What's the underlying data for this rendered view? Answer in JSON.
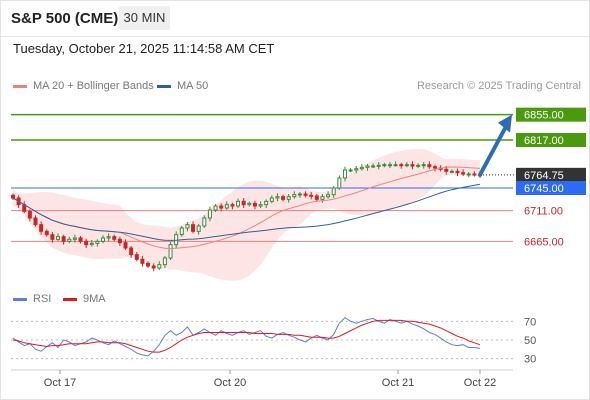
{
  "header": {
    "instrument": "S&P 500 (CME)",
    "timeframe": "30 MIN"
  },
  "datetime": "Tuesday, October 21, 2025 11:14:58 AM CET",
  "legend": [
    {
      "label": "MA 20 + Bollinger Bands",
      "color": "#f08080"
    },
    {
      "label": "MA 50",
      "color": "#2f5f98"
    }
  ],
  "credit": "Research © 2025 Trading Central",
  "rsi_legend": [
    {
      "label": "RSI",
      "color": "#5b7fd6"
    },
    {
      "label": "9MA",
      "color": "#e31a1c"
    }
  ],
  "colors": {
    "resistance": "#4a9a0e",
    "pivot": "#2d6cf0",
    "support": "#e88080",
    "current": "#333333",
    "up": "#3a8a3a",
    "down": "#c62828",
    "arrow": "#2d6cb5"
  },
  "chart_data": [
    {
      "type": "candlestick",
      "title": "S&P 500 (CME) 30 MIN",
      "x_ticks": [
        "Oct 17",
        "Oct 20",
        "Oct 21",
        "Oct 22"
      ],
      "y_range": [
        6610,
        6880
      ],
      "levels": [
        {
          "label": "6855.00",
          "value": 6855,
          "kind": "resistance"
        },
        {
          "label": "6817.00",
          "value": 6817,
          "kind": "resistance"
        },
        {
          "label": "6764.75",
          "value": 6764.75,
          "kind": "current"
        },
        {
          "label": "6745.00",
          "value": 6745,
          "kind": "pivot"
        },
        {
          "label": "6711.00",
          "value": 6711,
          "kind": "support"
        },
        {
          "label": "6665.00",
          "value": 6665,
          "kind": "support"
        }
      ],
      "close_series": [
        6730,
        6720,
        6710,
        6700,
        6690,
        6680,
        6675,
        6668,
        6672,
        6665,
        6668,
        6670,
        6665,
        6660,
        6662,
        6665,
        6670,
        6672,
        6668,
        6663,
        6655,
        6645,
        6638,
        6632,
        6628,
        6625,
        6630,
        6640,
        6660,
        6675,
        6685,
        6690,
        6680,
        6688,
        6700,
        6712,
        6718,
        6715,
        6720,
        6718,
        6725,
        6720,
        6722,
        6718,
        6720,
        6725,
        6730,
        6732,
        6728,
        6732,
        6735,
        6736,
        6734,
        6733,
        6728,
        6732,
        6735,
        6745,
        6760,
        6772,
        6772,
        6774,
        6776,
        6778,
        6778,
        6779,
        6780,
        6780,
        6780,
        6779,
        6780,
        6778,
        6779,
        6780,
        6777,
        6775,
        6773,
        6770,
        6770,
        6768,
        6766,
        6766,
        6765,
        6765
      ],
      "projection": {
        "from": 6764.75,
        "to": 6855
      }
    },
    {
      "type": "line",
      "name": "RSI panel",
      "y_ticks": [
        70,
        50,
        30
      ],
      "y_range": [
        20,
        80
      ],
      "series": [
        {
          "name": "RSI",
          "values": [
            52,
            48,
            44,
            46,
            40,
            38,
            43,
            47,
            42,
            50,
            48,
            44,
            46,
            48,
            52,
            50,
            47,
            45,
            49,
            46,
            43,
            40,
            36,
            34,
            33,
            38,
            45,
            55,
            60,
            55,
            58,
            64,
            55,
            58,
            62,
            58,
            55,
            60,
            57,
            55,
            58,
            60,
            56,
            58,
            60,
            54,
            52,
            56,
            58,
            55,
            53,
            50,
            48,
            52,
            55,
            52,
            50,
            56,
            68,
            74,
            70,
            68,
            70,
            72,
            73,
            70,
            68,
            72,
            70,
            68,
            70,
            67,
            65,
            62,
            58,
            56,
            52,
            48,
            45,
            44,
            45,
            42,
            42,
            41
          ]
        },
        {
          "name": "9MA",
          "values": [
            50,
            49,
            47,
            46,
            45,
            44,
            43,
            44,
            44,
            45,
            46,
            46,
            46,
            46,
            47,
            48,
            48,
            47,
            47,
            47,
            46,
            44,
            42,
            40,
            38,
            37,
            37,
            39,
            42,
            46,
            50,
            53,
            55,
            57,
            58,
            58,
            58,
            58,
            58,
            58,
            58,
            58,
            58,
            57,
            57,
            57,
            57,
            56,
            56,
            56,
            55,
            55,
            54,
            53,
            53,
            53,
            52,
            52,
            54,
            57,
            60,
            63,
            66,
            68,
            70,
            71,
            71,
            71,
            71,
            71,
            70,
            70,
            69,
            68,
            67,
            65,
            63,
            60,
            57,
            54,
            52,
            49,
            47,
            45
          ]
        }
      ]
    }
  ]
}
